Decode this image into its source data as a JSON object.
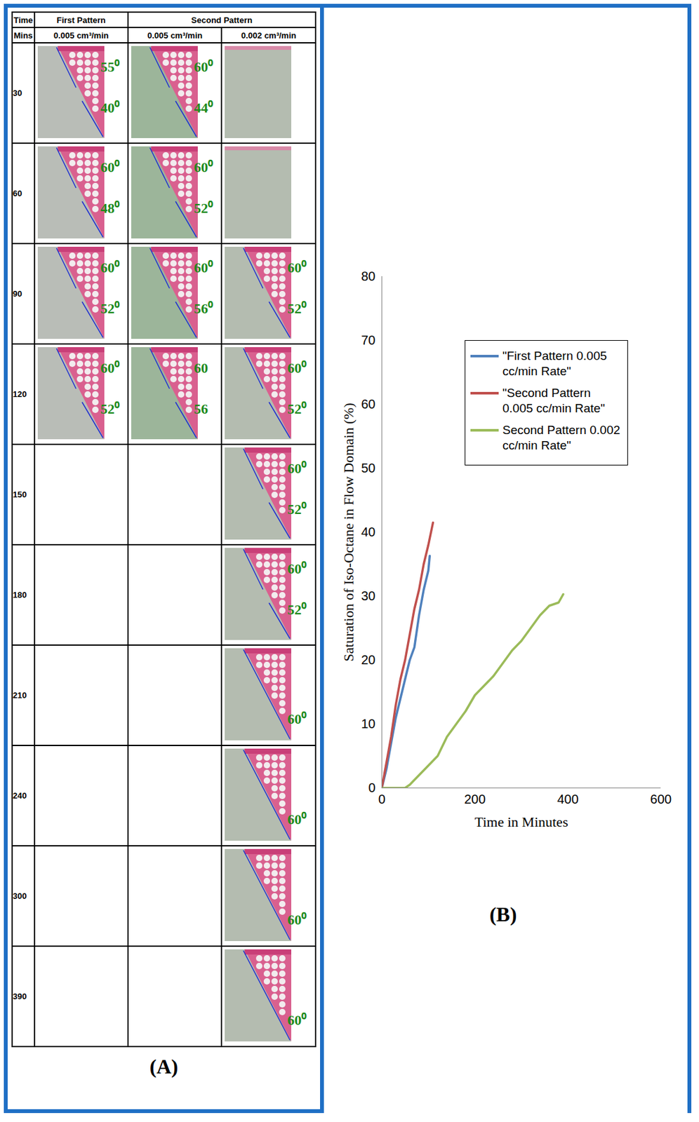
{
  "panel_labels": [
    "(A)",
    "(B)"
  ],
  "table": {
    "header": [
      [
        {
          "text": "Time",
          "columns": 1
        },
        {
          "text": "First Pattern",
          "columns": 1
        },
        {
          "text": "Second Pattern",
          "columns": 2
        }
      ],
      [
        {
          "text": "Mins",
          "columns": 1
        },
        {
          "text": "0.005 cm³/min",
          "columns": 1
        },
        {
          "text": "0.005 cm³/min",
          "columns": 1
        },
        {
          "text": "0.002 cm³/min",
          "columns": 1
        }
      ]
    ],
    "rows": [
      {
        "time": 30,
        "cells": [
          [
            "55⁰",
            "40⁰"
          ],
          [
            "60⁰",
            "44⁰"
          ],
          []
        ]
      },
      {
        "time": 60,
        "cells": [
          [
            "60⁰",
            "48⁰"
          ],
          [
            "60⁰",
            "52⁰"
          ],
          []
        ]
      },
      {
        "time": 90,
        "cells": [
          [
            "60⁰",
            "52⁰"
          ],
          [
            "60⁰",
            "56⁰"
          ],
          [
            "60⁰",
            "52⁰"
          ]
        ]
      },
      {
        "time": 120,
        "cells": [
          [
            "60⁰",
            "52⁰"
          ],
          [
            "60",
            "56"
          ],
          [
            "60⁰",
            "52⁰"
          ]
        ]
      },
      {
        "time": 150,
        "cells": [
          null,
          null,
          [
            "60⁰",
            "52⁰"
          ]
        ]
      },
      {
        "time": 180,
        "cells": [
          null,
          null,
          [
            "60⁰",
            "52⁰"
          ]
        ]
      },
      {
        "time": 210,
        "cells": [
          null,
          null,
          [
            "60⁰"
          ]
        ]
      },
      {
        "time": 240,
        "cells": [
          null,
          null,
          [
            "60⁰"
          ]
        ]
      },
      {
        "time": 300,
        "cells": [
          null,
          null,
          [
            "60⁰"
          ]
        ]
      },
      {
        "time": 390,
        "cells": [
          null,
          null,
          [
            "60⁰"
          ]
        ]
      }
    ]
  },
  "chart_data": {
    "type": "line",
    "x_label": "Time in Minutes",
    "y_label": "Saturation of Iso-Octane in Flow Domain (%)",
    "xlim": [
      0,
      600
    ],
    "xticks": [
      0,
      200,
      400,
      600
    ],
    "ylim": [
      0,
      80
    ],
    "yticks": [
      0,
      10,
      20,
      30,
      40,
      50,
      60,
      70,
      80
    ],
    "grid": false,
    "legend": "right",
    "series": [
      {
        "name": "\"First Pattern 0.005 cc/min Rate\"",
        "color": "#4f81bd",
        "x": [
          0,
          10,
          20,
          30,
          40,
          50,
          60,
          70,
          80,
          90,
          100,
          103
        ],
        "values": [
          0,
          3,
          7,
          11,
          14,
          17,
          20,
          22,
          27,
          31,
          34,
          36.3
        ]
      },
      {
        "name": "\"Second Pattern 0.005 cc/min Rate\"",
        "color": "#c0504d",
        "x": [
          0,
          10,
          20,
          30,
          40,
          50,
          60,
          70,
          80,
          90,
          100,
          110
        ],
        "values": [
          0,
          4,
          8,
          13,
          17,
          20,
          24,
          28,
          31,
          35,
          38,
          41.5
        ]
      },
      {
        "name": "Second Pattern 0.002 cc/min Rate\"",
        "color": "#9bbb59",
        "x": [
          0,
          50,
          60,
          80,
          100,
          120,
          140,
          160,
          180,
          200,
          220,
          240,
          260,
          280,
          300,
          320,
          340,
          360,
          380,
          390
        ],
        "values": [
          0,
          0,
          0.5,
          2,
          3.5,
          5,
          8,
          10,
          12,
          14.5,
          16,
          17.5,
          19.5,
          21.5,
          23,
          25,
          27,
          28.5,
          29,
          30.3
        ]
      }
    ]
  }
}
